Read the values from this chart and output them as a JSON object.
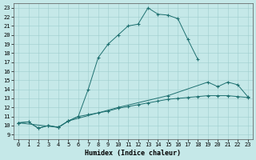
{
  "xlabel": "Humidex (Indice chaleur)",
  "xlim": [
    -0.5,
    23.5
  ],
  "ylim": [
    8.5,
    23.5
  ],
  "yticks": [
    9,
    10,
    11,
    12,
    13,
    14,
    15,
    16,
    17,
    18,
    19,
    20,
    21,
    22,
    23
  ],
  "xticks": [
    0,
    1,
    2,
    3,
    4,
    5,
    6,
    7,
    8,
    9,
    10,
    11,
    12,
    13,
    14,
    15,
    16,
    17,
    18,
    19,
    20,
    21,
    22,
    23
  ],
  "bg_color": "#c5e8e8",
  "line_color": "#1e7070",
  "grid_color": "#9ecece",
  "line1_x": [
    0,
    1,
    2,
    3,
    4,
    5,
    6,
    7,
    8,
    9,
    10,
    11,
    12,
    13,
    14,
    15,
    16,
    17,
    18
  ],
  "line1_y": [
    10.3,
    10.4,
    9.7,
    10.0,
    9.8,
    10.5,
    11.0,
    14.0,
    17.5,
    19.0,
    20.0,
    21.0,
    21.2,
    23.0,
    22.3,
    22.2,
    21.8,
    19.5,
    17.3
  ],
  "line2_x": [
    0,
    1,
    2,
    3,
    4,
    5,
    6,
    7,
    8,
    9,
    10,
    11,
    12,
    13,
    14,
    15,
    16,
    17,
    18,
    19,
    20,
    21,
    22,
    23
  ],
  "line2_y": [
    10.3,
    10.4,
    9.7,
    10.0,
    9.8,
    10.5,
    11.0,
    11.2,
    11.4,
    11.6,
    11.9,
    12.1,
    12.3,
    12.5,
    12.7,
    12.9,
    13.0,
    13.1,
    13.2,
    13.3,
    13.3,
    13.3,
    13.2,
    13.1
  ],
  "line3_x": [
    0,
    4,
    5,
    10,
    15,
    19,
    20,
    21,
    22,
    23
  ],
  "line3_y": [
    10.3,
    9.8,
    10.5,
    12.0,
    13.3,
    14.8,
    14.3,
    14.8,
    14.5,
    13.2
  ],
  "tick_fontsize": 5,
  "xlabel_fontsize": 6,
  "xlabel_fontweight": "bold",
  "figwidth": 3.2,
  "figheight": 2.0,
  "dpi": 100
}
